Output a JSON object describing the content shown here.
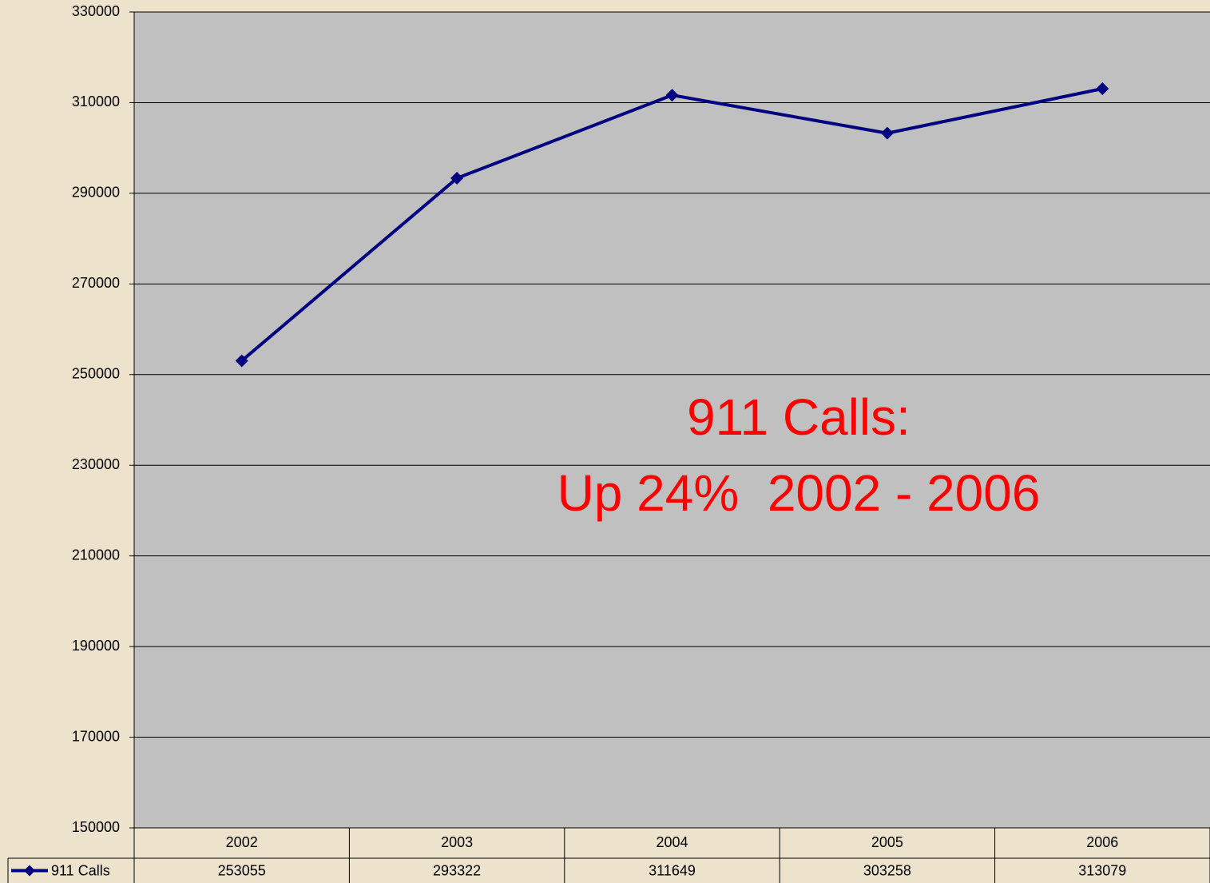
{
  "chart_data": {
    "type": "line",
    "categories": [
      "2002",
      "2003",
      "2004",
      "2005",
      "2006"
    ],
    "series": [
      {
        "name": "911 Calls",
        "color": "#000080",
        "values": [
          253055,
          293322,
          311649,
          303258,
          313079
        ]
      }
    ],
    "ylim": [
      150000,
      330000
    ],
    "yticks": [
      150000,
      170000,
      190000,
      210000,
      230000,
      250000,
      270000,
      290000,
      310000,
      330000
    ],
    "grid": true,
    "annotations": [
      "911 Calls:",
      "Up 24%  2002 - 2006"
    ],
    "annotation_color": "#ff0000"
  }
}
